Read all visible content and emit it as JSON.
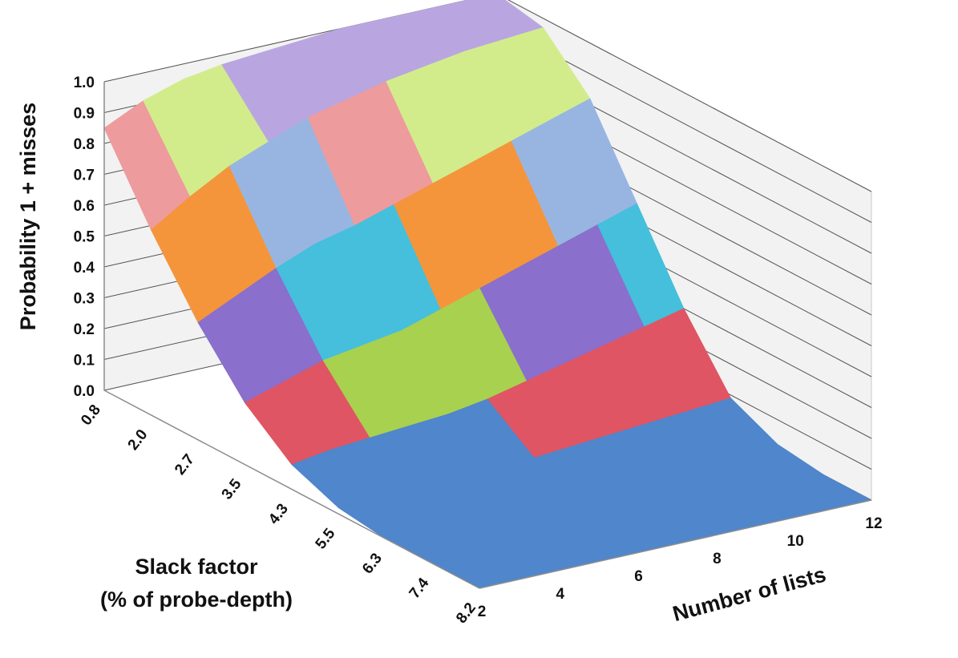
{
  "chart_data": {
    "type": "surface",
    "title": "",
    "zlabel": "Probability 1 + misses",
    "ylabel_lines": [
      "Slack factor",
      "(% of probe-depth)"
    ],
    "xlabel": "Number of lists",
    "zlim": [
      0,
      1
    ],
    "z_ticks": [
      "0.0",
      "0.1",
      "0.2",
      "0.3",
      "0.4",
      "0.5",
      "0.6",
      "0.7",
      "0.8",
      "0.9",
      "1.0"
    ],
    "slack_ticks": [
      "0.8",
      "2.0",
      "2.7",
      "3.5",
      "4.3",
      "5.5",
      "6.3",
      "7.4",
      "8.2"
    ],
    "lists_ticks": [
      "2",
      "4",
      "6",
      "8",
      "10",
      "12"
    ],
    "lists": [
      2,
      3,
      4,
      5,
      6,
      7,
      8,
      9,
      10,
      11,
      12
    ],
    "band_colors": [
      "#4f86cc",
      "#e05563",
      "#a8d14f",
      "#8a6fcc",
      "#45bfdc",
      "#f4953c",
      "#98b5e2",
      "#ee9b9d",
      "#d2ec8c",
      "#b9a6e0"
    ],
    "grid": true,
    "z_values": [
      [
        0.85,
        0.91,
        0.95,
        0.97,
        0.98,
        0.99,
        1.0,
        1.0,
        1.0,
        1.0,
        1.0
      ],
      [
        0.6,
        0.68,
        0.75,
        0.8,
        0.85,
        0.88,
        0.91,
        0.93,
        0.95,
        0.96,
        0.97
      ],
      [
        0.38,
        0.44,
        0.5,
        0.55,
        0.58,
        0.62,
        0.66,
        0.7,
        0.74,
        0.78,
        0.82
      ],
      [
        0.2,
        0.24,
        0.28,
        0.3,
        0.32,
        0.36,
        0.4,
        0.44,
        0.48,
        0.52,
        0.56
      ],
      [
        0.08,
        0.1,
        0.11,
        0.12,
        0.13,
        0.15,
        0.18,
        0.21,
        0.24,
        0.27,
        0.3
      ],
      [
        0.02,
        0.02,
        0.03,
        0.03,
        0.03,
        0.04,
        0.05,
        0.06,
        0.07,
        0.08,
        0.09
      ],
      [
        0.0,
        0.0,
        0.0,
        0.0,
        0.0,
        0.01,
        0.01,
        0.01,
        0.02,
        0.02,
        0.02
      ],
      [
        0.0,
        0.0,
        0.0,
        0.0,
        0.0,
        0.0,
        0.0,
        0.0,
        0.0,
        0.0,
        0.0
      ],
      [
        0.0,
        0.0,
        0.0,
        0.0,
        0.0,
        0.0,
        0.0,
        0.0,
        0.0,
        0.0,
        0.0
      ]
    ]
  }
}
